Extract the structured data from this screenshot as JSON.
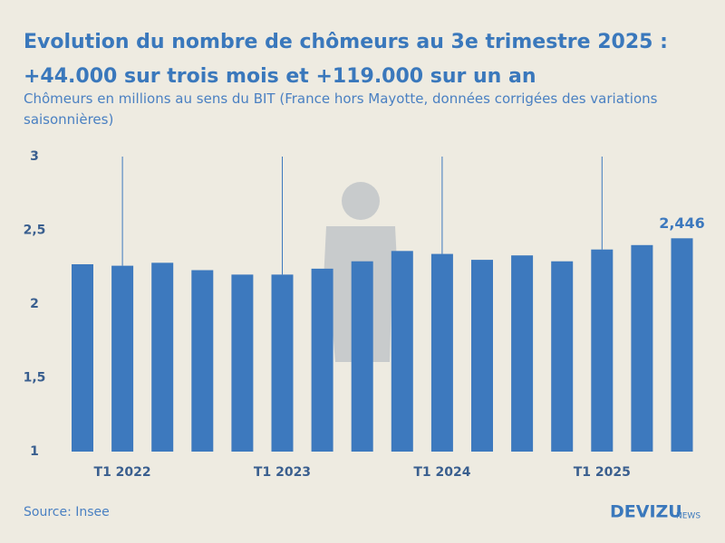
{
  "chart_data": {
    "type": "bar",
    "title": [
      "Evolution du nombre de chômeurs au 3e trimestre 2025 :",
      "+44.000 sur trois mois et +119.000 sur un an"
    ],
    "subtitle": [
      "Chômeurs en millions au sens du BIT (France hors Mayotte, données corrigées des variations",
      "saisonnières)"
    ],
    "categories": [
      null,
      "T1 2022",
      null,
      null,
      null,
      "T1 2023",
      null,
      null,
      null,
      "T1 2024",
      null,
      null,
      null,
      "T1 2025",
      null,
      null
    ],
    "values": [
      2.27,
      2.26,
      2.28,
      2.23,
      2.2,
      2.2,
      2.24,
      2.29,
      2.36,
      2.34,
      2.3,
      2.33,
      2.29,
      2.37,
      2.4,
      2.446
    ],
    "value_labels": [
      null,
      null,
      null,
      null,
      null,
      null,
      null,
      null,
      null,
      null,
      null,
      null,
      null,
      null,
      null,
      "2,446"
    ],
    "color": "#3d79be",
    "ylim": [
      1,
      3
    ],
    "yticks": [
      1,
      {
        "value": 1.5,
        "label": "1,5"
      },
      2,
      {
        "value": 2.5,
        "label": "2,5"
      },
      3
    ],
    "grid": false
  },
  "footer": {
    "source": "Source: Insee",
    "brand": "DEVIZU",
    "brand_suffix": "NEWS"
  }
}
